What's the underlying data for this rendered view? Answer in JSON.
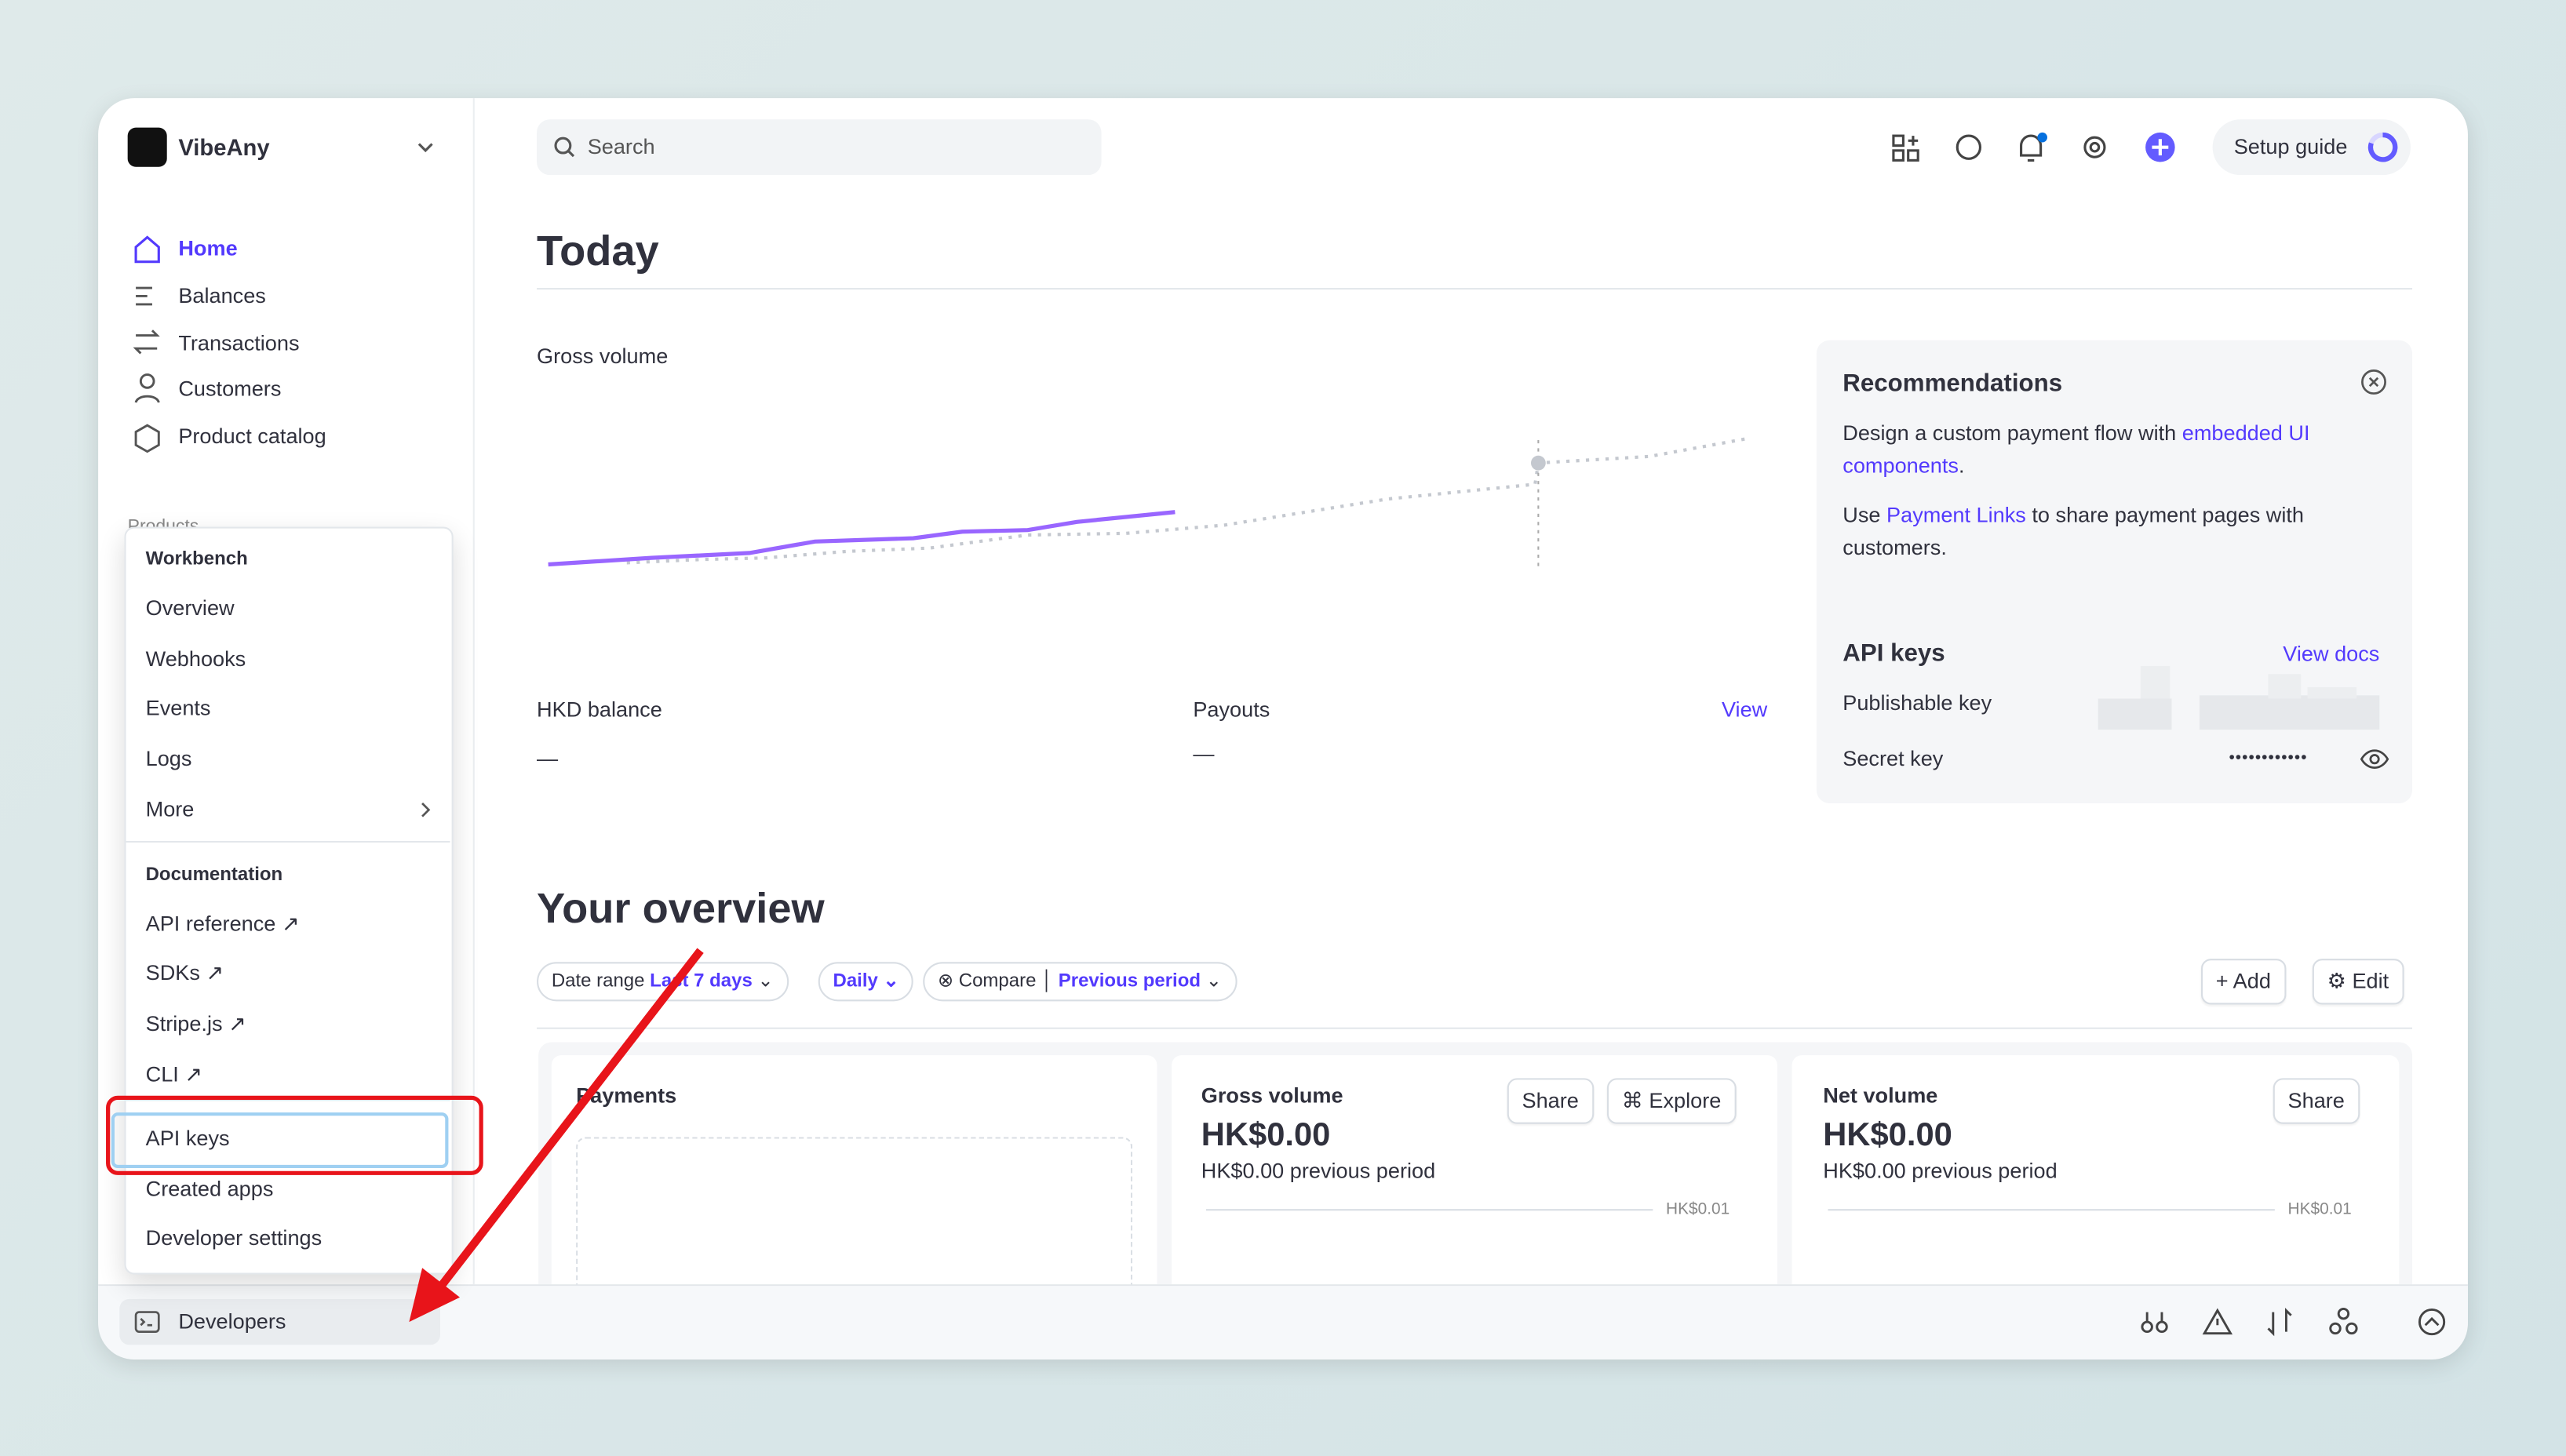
{
  "account": {
    "name": "VibeAny"
  },
  "search": {
    "placeholder": "Search"
  },
  "setup_guide": "Setup guide",
  "nav": {
    "items": [
      "Home",
      "Balances",
      "Transactions",
      "Customers",
      "Product catalog"
    ],
    "section": "Products"
  },
  "today": {
    "title": "Today",
    "gross_volume": "Gross volume",
    "hkd_balance": "HKD balance",
    "hkd_balance_value": "—",
    "payouts": "Payouts",
    "payouts_value": "—",
    "view": "View"
  },
  "recommendations": {
    "title": "Recommendations",
    "items": [
      {
        "before": "Design a custom payment flow with ",
        "link": "embedded UI components",
        "after": "."
      },
      {
        "before": "Use ",
        "link": "Payment Links",
        "after": " to share payment pages with customers."
      }
    ]
  },
  "api_keys": {
    "title": "API keys",
    "view_docs": "View docs",
    "publishable": "Publishable key",
    "secret": "Secret key",
    "secret_value": "••••••••••••"
  },
  "overview": {
    "title": "Your overview",
    "filters": {
      "date_range": "Date range",
      "date_value": "Last 7 days",
      "interval": "Daily",
      "compare": "Compare",
      "compare_value": "Previous period"
    },
    "add": "Add",
    "edit": "Edit",
    "cards": [
      {
        "title": "Payments"
      },
      {
        "title": "Gross volume",
        "amount": "HK$0.00",
        "previous": "HK$0.00 previous period",
        "axis": "HK$0.01",
        "share": "Share",
        "explore": "Explore"
      },
      {
        "title": "Net volume",
        "amount": "HK$0.00",
        "previous": "HK$0.00 previous period",
        "axis": "HK$0.01",
        "share": "Share"
      }
    ]
  },
  "menu": {
    "workbench": {
      "title": "Workbench",
      "items": [
        "Overview",
        "Webhooks",
        "Events",
        "Logs",
        "More"
      ]
    },
    "documentation": {
      "title": "Documentation",
      "items": [
        "API reference",
        "SDKs",
        "Stripe.js",
        "CLI"
      ]
    },
    "other": [
      "API keys",
      "Created apps",
      "Developer settings"
    ]
  },
  "footer": {
    "developers": "Developers"
  }
}
